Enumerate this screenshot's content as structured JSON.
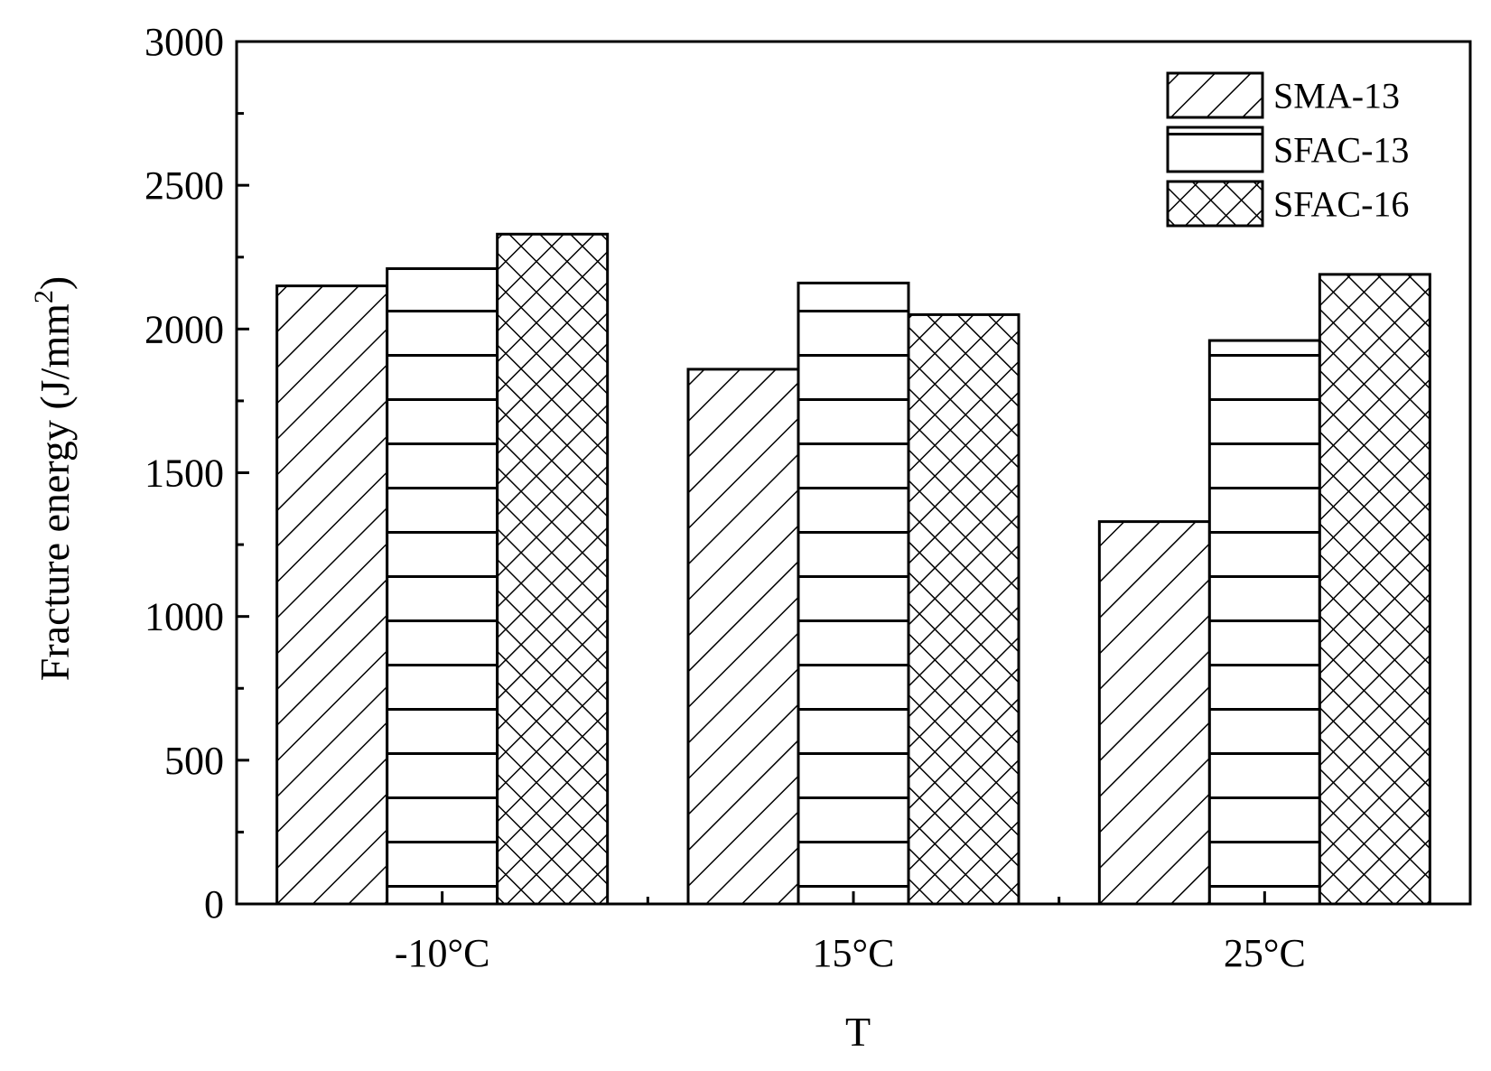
{
  "chart_data": {
    "type": "bar",
    "title": "",
    "xlabel": "T",
    "ylabel": "Fracture energy (J/mm",
    "ylabel_sup": "2",
    "ylabel_close": ")",
    "ylim": [
      0,
      3000
    ],
    "yticks": [
      0,
      500,
      1000,
      1500,
      2000,
      2500,
      3000
    ],
    "categories": [
      "-10°C",
      "15°C",
      "25°C"
    ],
    "series": [
      {
        "name": "SMA-13",
        "pattern": "diagonal-hatch",
        "values": [
          2150,
          1860,
          1330
        ]
      },
      {
        "name": "SFAC-13",
        "pattern": "horizontal-lines",
        "values": [
          2210,
          2160,
          1960
        ]
      },
      {
        "name": "SFAC-16",
        "pattern": "crosshatch",
        "values": [
          2330,
          2050,
          2190
        ]
      }
    ],
    "legend_position": "top-right",
    "grid": false
  }
}
